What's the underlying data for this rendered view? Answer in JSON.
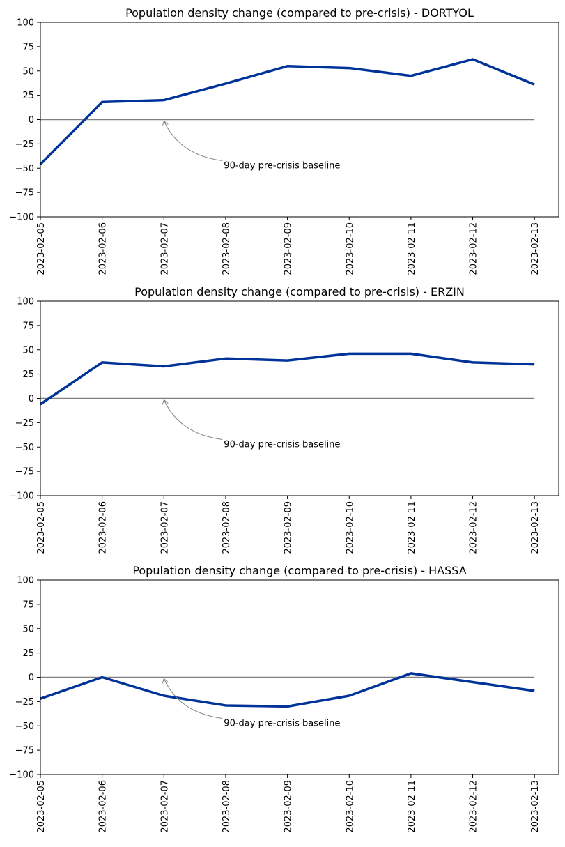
{
  "chart_data": [
    {
      "type": "line",
      "title": "Population density change (compared to pre-crisis) - DORTYOL",
      "x": [
        "2023-02-05",
        "2023-02-06",
        "2023-02-07",
        "2023-02-08",
        "2023-02-09",
        "2023-02-10",
        "2023-02-11",
        "2023-02-12",
        "2023-02-13"
      ],
      "series": [
        {
          "values": [
            -46,
            18,
            20,
            37,
            55,
            53,
            45,
            62,
            36
          ],
          "color": "#003399"
        }
      ],
      "baseline": {
        "value": 0,
        "color": "#808080"
      },
      "annotation": {
        "text": "90-day pre-crisis baseline",
        "target_x": "2023-02-07",
        "target_y": 0
      },
      "xlabel": "",
      "ylabel": "",
      "ylim": [
        -100,
        100
      ],
      "yticks": [
        -100,
        -75,
        -50,
        -25,
        0,
        25,
        50,
        75,
        100
      ],
      "grid": false,
      "legend": "none"
    },
    {
      "type": "line",
      "title": "Population density change (compared to pre-crisis) - ERZIN",
      "x": [
        "2023-02-05",
        "2023-02-06",
        "2023-02-07",
        "2023-02-08",
        "2023-02-09",
        "2023-02-10",
        "2023-02-11",
        "2023-02-12",
        "2023-02-13"
      ],
      "series": [
        {
          "values": [
            -6,
            37,
            33,
            41,
            39,
            46,
            46,
            37,
            35
          ],
          "color": "#003399"
        }
      ],
      "baseline": {
        "value": 0,
        "color": "#808080"
      },
      "annotation": {
        "text": "90-day pre-crisis baseline",
        "target_x": "2023-02-07",
        "target_y": 0
      },
      "xlabel": "",
      "ylabel": "",
      "ylim": [
        -100,
        100
      ],
      "yticks": [
        -100,
        -75,
        -50,
        -25,
        0,
        25,
        50,
        75,
        100
      ],
      "grid": false,
      "legend": "none"
    },
    {
      "type": "line",
      "title": "Population density change (compared to pre-crisis) - HASSA",
      "x": [
        "2023-02-05",
        "2023-02-06",
        "2023-02-07",
        "2023-02-08",
        "2023-02-09",
        "2023-02-10",
        "2023-02-11",
        "2023-02-12",
        "2023-02-13"
      ],
      "series": [
        {
          "values": [
            -22,
            0,
            -19,
            -29,
            -30,
            -19,
            4,
            -5,
            -14
          ],
          "color": "#003399"
        }
      ],
      "baseline": {
        "value": 0,
        "color": "#808080"
      },
      "annotation": {
        "text": "90-day pre-crisis baseline",
        "target_x": "2023-02-07",
        "target_y": 0
      },
      "xlabel": "",
      "ylabel": "",
      "ylim": [
        -100,
        100
      ],
      "yticks": [
        -100,
        -75,
        -50,
        -25,
        0,
        25,
        50,
        75,
        100
      ],
      "grid": false,
      "legend": "none"
    }
  ]
}
